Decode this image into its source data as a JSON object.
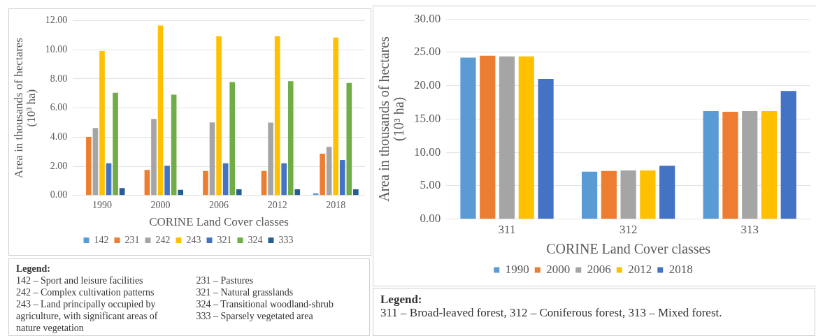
{
  "chart_data": [
    {
      "type": "bar",
      "categories": [
        "1990",
        "2000",
        "2006",
        "2012",
        "2018"
      ],
      "xlabel": "CORINE Land Cover classes",
      "ylabel": "Area in thousands of hectares\n(10³ ha)",
      "series": [
        {
          "name": "142",
          "color": "#5b9bd5",
          "values": [
            0,
            0,
            0,
            0,
            0.15
          ]
        },
        {
          "name": "231",
          "color": "#ed7d31",
          "values": [
            4.02,
            1.75,
            1.68,
            1.68,
            2.87
          ]
        },
        {
          "name": "242",
          "color": "#a5a5a5",
          "values": [
            4.63,
            5.25,
            5.01,
            5.0,
            3.33
          ]
        },
        {
          "name": "243",
          "color": "#ffc000",
          "values": [
            9.91,
            11.66,
            10.92,
            10.92,
            10.83
          ]
        },
        {
          "name": "321",
          "color": "#4472c4",
          "values": [
            2.21,
            2.04,
            2.21,
            2.21,
            2.44
          ]
        },
        {
          "name": "324",
          "color": "#70ad47",
          "values": [
            7.05,
            6.91,
            7.78,
            7.84,
            7.72
          ]
        },
        {
          "name": "333",
          "color": "#255e91",
          "values": [
            0.51,
            0.39,
            0.42,
            0.42,
            0.42
          ]
        }
      ],
      "ylim": [
        0,
        12
      ],
      "yticks": [
        {
          "value": 0,
          "label": "0.00"
        },
        {
          "value": 2,
          "label": "2.00"
        },
        {
          "value": 4,
          "label": "4.00"
        },
        {
          "value": 6,
          "label": "6.00"
        },
        {
          "value": 8,
          "label": "8.00"
        },
        {
          "value": 10,
          "label": "10.00"
        },
        {
          "value": 12,
          "label": "12.00"
        }
      ],
      "grid": "y",
      "legend": "bottom",
      "annotations": [
        "Legend:",
        "142 – Sport and leisure facilities",
        "242 – Complex cultivation patterns",
        "243 – Land principally occupied by agriculture, with significant areas of nature vegetation",
        "231 – Pastures",
        "321 – Natural grasslands",
        "324 – Transitional woodland-shrub",
        "333 – Sparsely vegetated area"
      ]
    },
    {
      "type": "bar",
      "categories": [
        "311",
        "312",
        "313"
      ],
      "xlabel": "CORINE Land Cover classes",
      "ylabel": "Area in thousands of hectares\n(10³ ha)",
      "series": [
        {
          "name": "1990",
          "color": "#5b9bd5",
          "values": [
            24.2,
            7.1,
            16.2
          ]
        },
        {
          "name": "2000",
          "color": "#ed7d31",
          "values": [
            24.5,
            7.2,
            16.1
          ]
        },
        {
          "name": "2006",
          "color": "#a5a5a5",
          "values": [
            24.4,
            7.3,
            16.2
          ]
        },
        {
          "name": "2012",
          "color": "#ffc000",
          "values": [
            24.4,
            7.3,
            16.2
          ]
        },
        {
          "name": "2018",
          "color": "#4472c4",
          "values": [
            21.0,
            8.0,
            19.2
          ]
        }
      ],
      "ylim": [
        0,
        30
      ],
      "yticks": [
        {
          "value": 0,
          "label": "0.00"
        },
        {
          "value": 5,
          "label": "5.00"
        },
        {
          "value": 10,
          "label": "10.00"
        },
        {
          "value": 15,
          "label": "15.00"
        },
        {
          "value": 20,
          "label": "20.00"
        },
        {
          "value": 25,
          "label": "25.00"
        },
        {
          "value": 30,
          "label": "30.00"
        }
      ],
      "grid": "y",
      "legend": "bottom",
      "annotations": [
        "Legend:",
        "311 – Broad-leaved forest, 312 – Coniferous forest, 313 – Mixed forest."
      ]
    }
  ]
}
